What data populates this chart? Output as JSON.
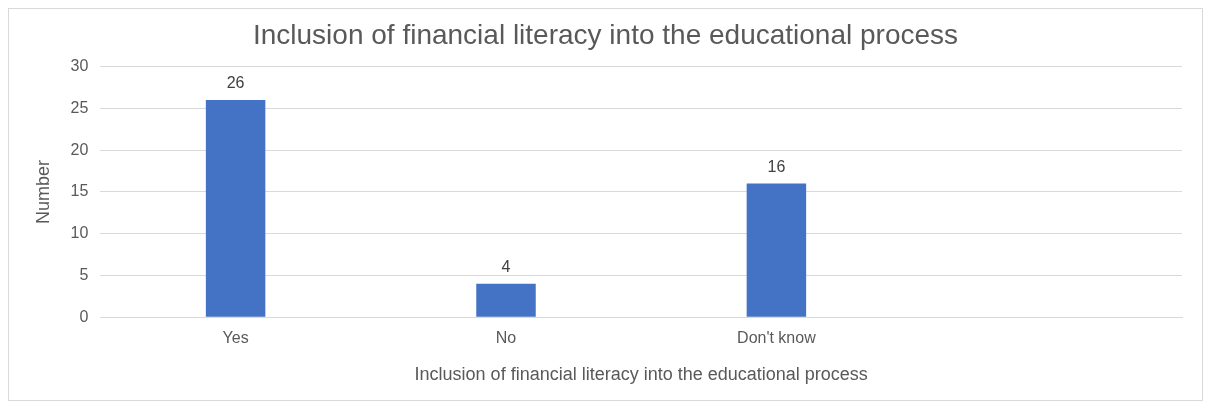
{
  "chart_data": {
    "type": "bar",
    "title": "Inclusion of financial literacy into the educational process",
    "xlabel": "Inclusion of financial literacy into the educational process",
    "ylabel": "Number",
    "categories": [
      "Yes",
      "No",
      "Don't know",
      null
    ],
    "values": [
      26,
      4,
      16,
      null
    ],
    "color": "#4472c4",
    "ylim": [
      0,
      30
    ],
    "yticks": [
      0,
      5,
      10,
      15,
      20,
      25,
      30
    ],
    "grid": "y",
    "data_labels": true
  }
}
